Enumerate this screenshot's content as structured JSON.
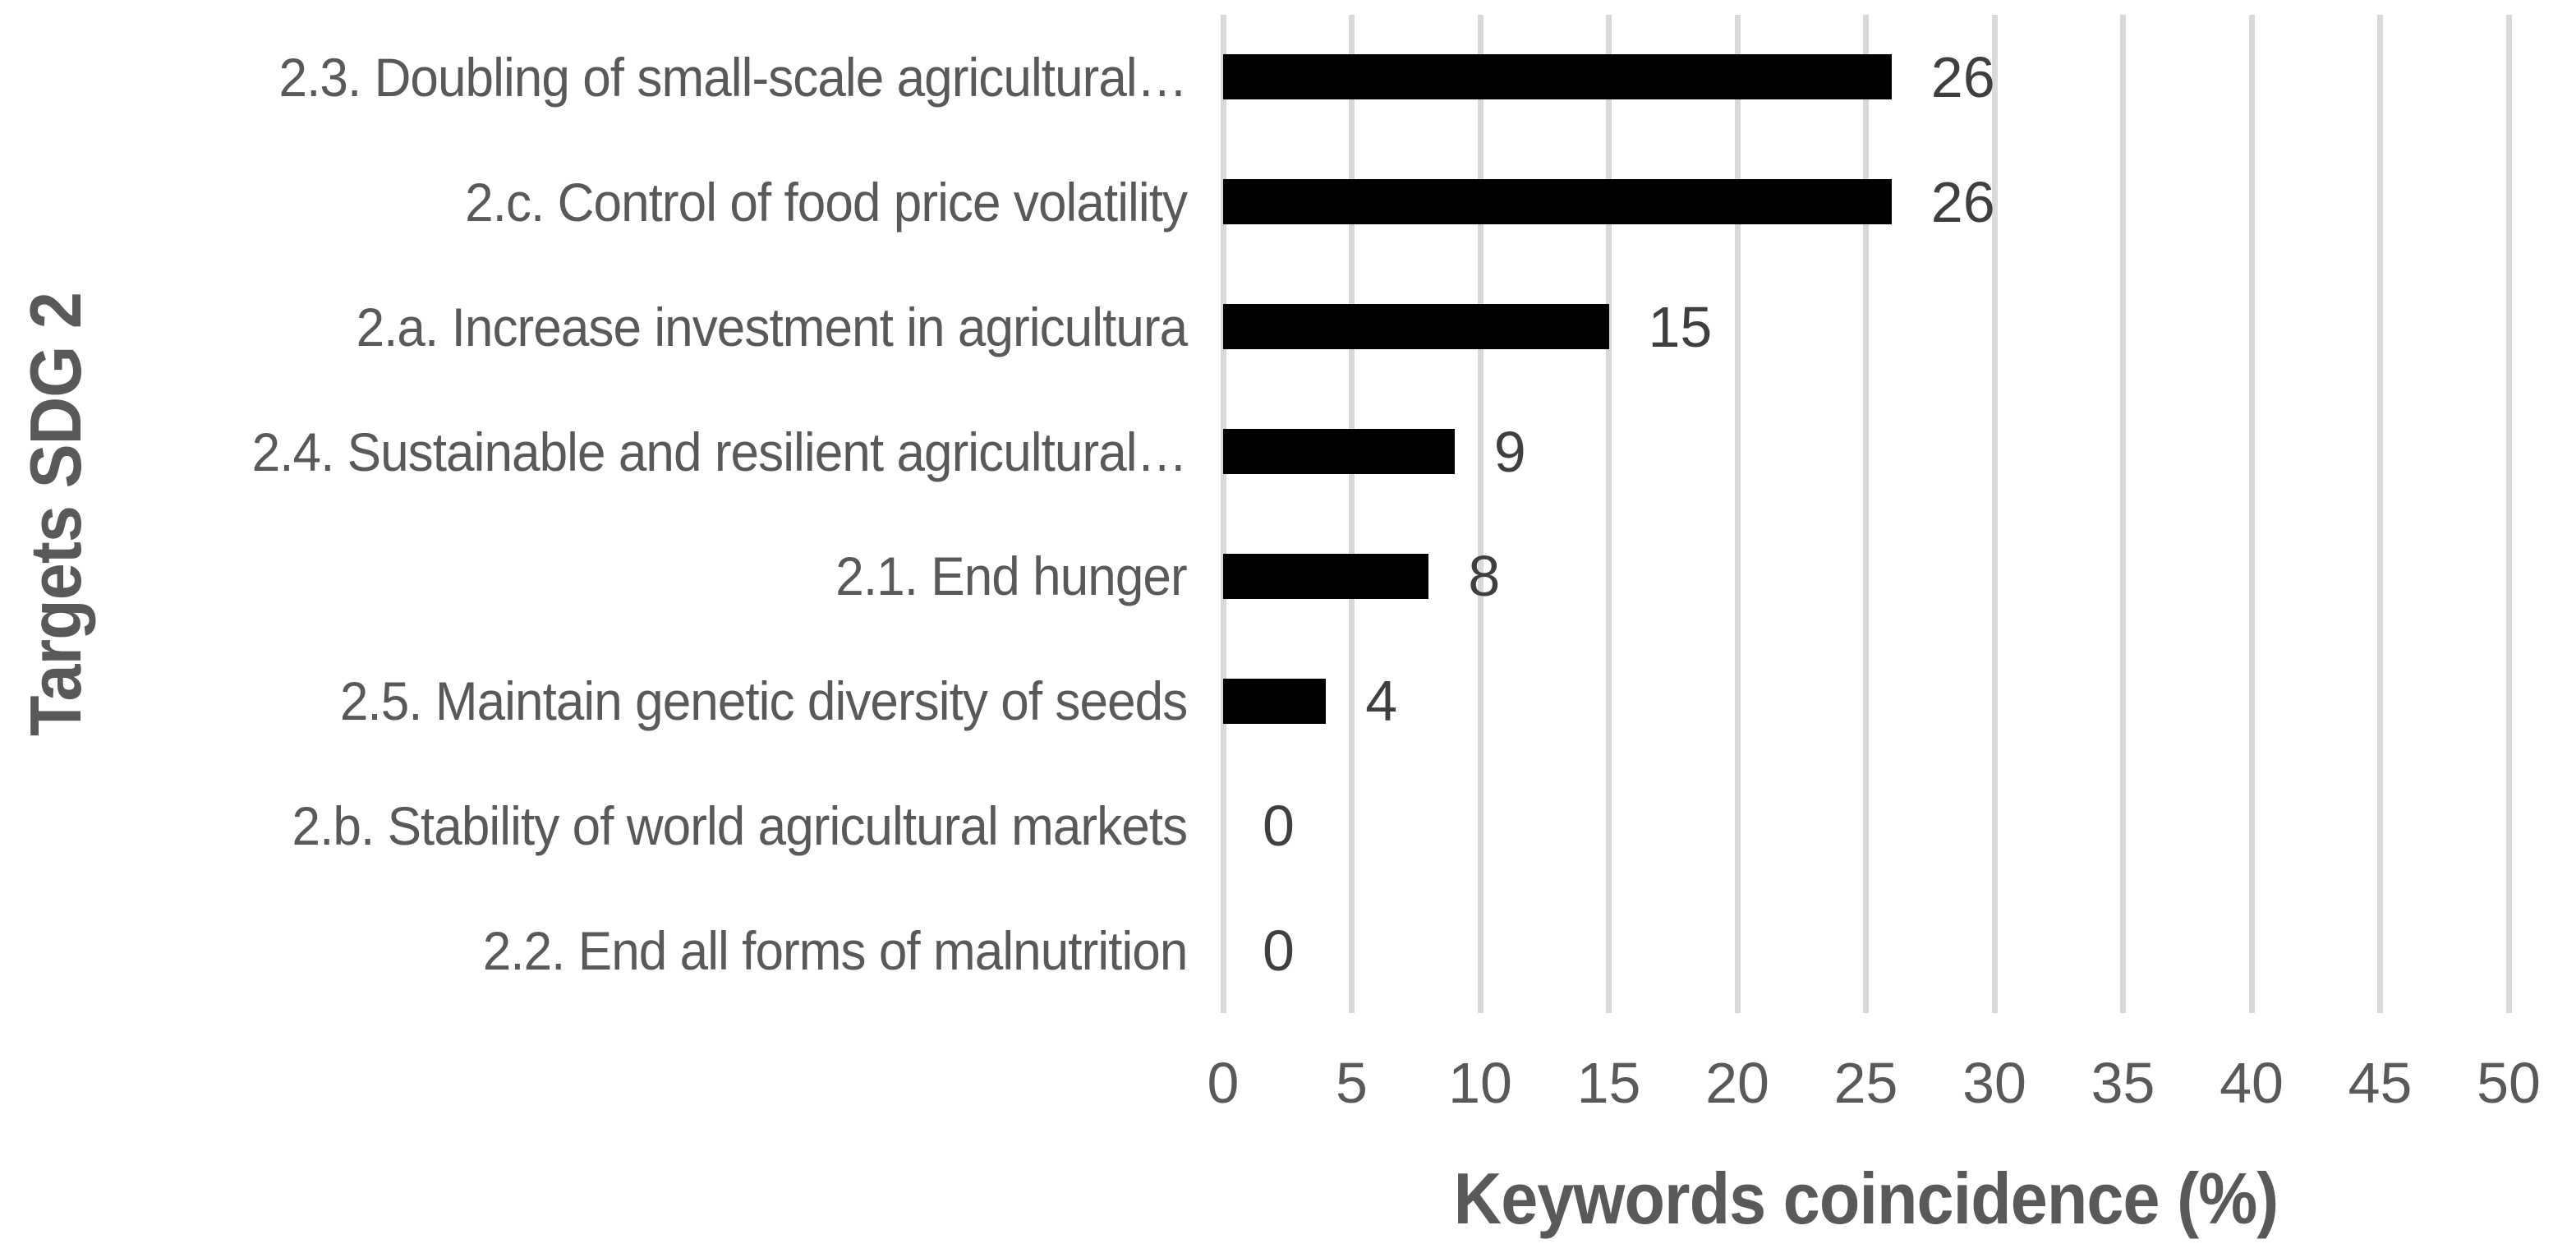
{
  "chart_data": {
    "type": "bar",
    "orientation": "horizontal",
    "title": "",
    "categories": [
      "2.3. Doubling of small-scale agricultural…",
      "2.c. Control of food price volatility",
      "2.a. Increase investment in agricultura",
      "2.4. Sustainable and resilient agricultural…",
      "2.1. End hunger",
      "2.5. Maintain genetic diversity of seeds",
      "2.b. Stability of world agricultural markets",
      "2.2. End all forms of malnutrition"
    ],
    "values": [
      26,
      26,
      15,
      9,
      8,
      4,
      0,
      0
    ],
    "data_labels": [
      "26",
      "26",
      "15",
      "9",
      "8",
      "4",
      "0",
      "0"
    ],
    "xlabel": "Keywords coincidence (%)",
    "ylabel": "Targets SDG 2",
    "xlim": [
      0,
      50
    ],
    "xticks": [
      0,
      5,
      10,
      15,
      20,
      25,
      30,
      35,
      40,
      45,
      50
    ],
    "xtick_labels": [
      "0",
      "5",
      "10",
      "15",
      "20",
      "25",
      "30",
      "35",
      "40",
      "45",
      "50"
    ],
    "grid": "vertical-gridlines",
    "legend": "none",
    "colors": {
      "bar": "#000000",
      "gridline": "#d9d9d9",
      "axis_text": "#595959",
      "value_label_text": "#3f3f3f",
      "background": "#ffffff"
    }
  }
}
